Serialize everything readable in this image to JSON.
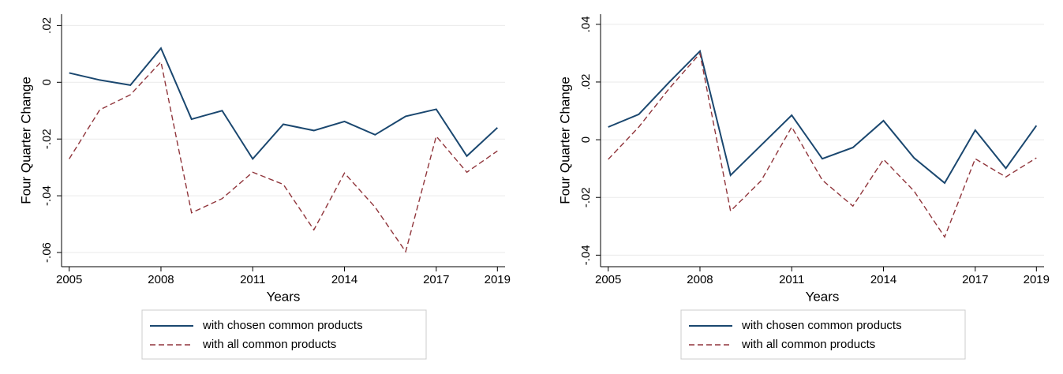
{
  "chart_data": [
    {
      "type": "line",
      "x_label": "Years",
      "y_label": "Four Quarter Change",
      "x": [
        2005,
        2006,
        2007,
        2008,
        2009,
        2010,
        2011,
        2012,
        2013,
        2014,
        2015,
        2016,
        2017,
        2018,
        2019
      ],
      "xlim": [
        2004.75,
        2019.25
      ],
      "xticks": [
        2005,
        2008,
        2011,
        2014,
        2017,
        2019
      ],
      "ylim": [
        -0.065,
        0.024
      ],
      "yticks": [
        {
          "value": 0.02,
          "label": ".02"
        },
        0,
        {
          "value": -0.02,
          "label": "-.02"
        },
        {
          "value": -0.04,
          "label": "-.04"
        },
        {
          "value": -0.06,
          "label": "-.06"
        }
      ],
      "grid": true,
      "legend": "bottom",
      "series": [
        {
          "name": "with chosen common products",
          "color": "#1a476f",
          "linestyle": "solid",
          "values": [
            0.0033,
            0.0008,
            -0.001,
            0.012,
            -0.013,
            -0.01,
            -0.027,
            -0.0148,
            -0.017,
            -0.0138,
            -0.0185,
            -0.012,
            -0.0095,
            -0.026,
            -0.016
          ]
        },
        {
          "name": "with all common products",
          "color": "#90353b",
          "linestyle": "dashed",
          "values": [
            -0.027,
            -0.0097,
            -0.0044,
            0.0072,
            -0.046,
            -0.041,
            -0.0317,
            -0.036,
            -0.052,
            -0.032,
            -0.044,
            -0.0597,
            -0.019,
            -0.0317,
            -0.0242
          ]
        }
      ]
    },
    {
      "type": "line",
      "x_label": "Years",
      "y_label": "Four Quarter Change",
      "x": [
        2005,
        2006,
        2007,
        2008,
        2009,
        2010,
        2011,
        2012,
        2013,
        2014,
        2015,
        2016,
        2017,
        2018,
        2019
      ],
      "xlim": [
        2004.75,
        2019.25
      ],
      "xticks": [
        2005,
        2008,
        2011,
        2014,
        2017,
        2019
      ],
      "ylim": [
        -0.044,
        0.0435
      ],
      "yticks": [
        {
          "value": 0.04,
          "label": ".04"
        },
        {
          "value": 0.02,
          "label": ".02"
        },
        0,
        {
          "value": -0.02,
          "label": "-.02"
        },
        {
          "value": -0.04,
          "label": "-.04"
        }
      ],
      "grid": true,
      "legend": "bottom",
      "series": [
        {
          "name": "with chosen common products",
          "color": "#1a476f",
          "linestyle": "solid",
          "values": [
            0.0044,
            0.0088,
            0.02,
            0.0307,
            -0.0123,
            -0.0019,
            0.0085,
            -0.0066,
            -0.0027,
            0.0066,
            -0.0063,
            -0.015,
            0.0033,
            -0.0099,
            0.0049
          ]
        },
        {
          "name": "with all common products",
          "color": "#90353b",
          "linestyle": "dashed",
          "values": [
            -0.0068,
            0.0044,
            0.0178,
            0.0299,
            -0.0247,
            -0.0142,
            0.0044,
            -0.014,
            -0.023,
            -0.0068,
            -0.0178,
            -0.0337,
            -0.0066,
            -0.0129,
            -0.0063
          ]
        }
      ]
    }
  ]
}
